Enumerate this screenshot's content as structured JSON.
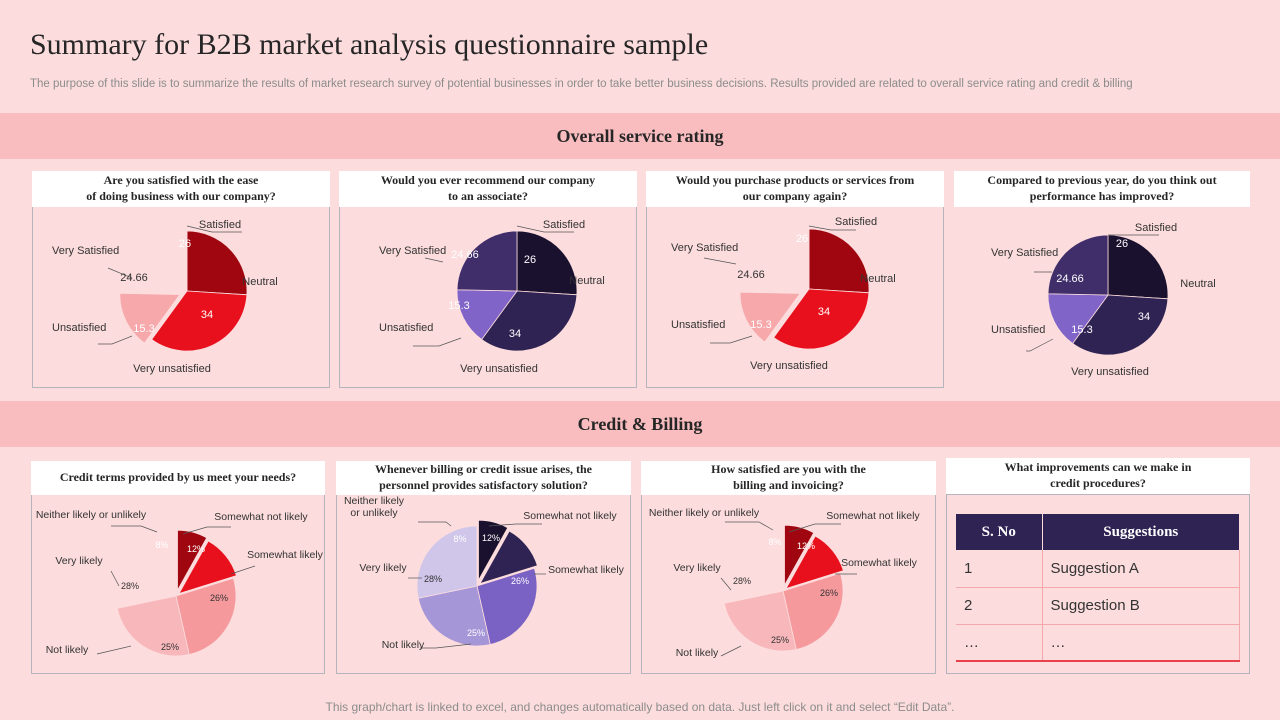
{
  "page": {
    "title": "Summary for B2B market analysis questionnaire sample",
    "subtitle": "The purpose of this slide is to summarize the results of market research survey of potential businesses in order to take better business decisions. Results provided are related to overall service rating and credit & billing",
    "section1": "Overall service rating",
    "section2": "Credit & Billing",
    "footer": "This graph/chart is linked to excel, and changes automatically based on data. Just left click on it and select “Edit Data”."
  },
  "chart_data": [
    {
      "type": "pie",
      "question": "Are you satisfied with the ease\nof doing business with our company?",
      "categories": [
        "Satisfied",
        "Neutral",
        "Very unsatisfied",
        "Unsatisfied",
        "Very Satisfied"
      ],
      "values": [
        26,
        34,
        0,
        15.3,
        24.66
      ],
      "value_labels": [
        "26",
        "34",
        "",
        "15.3",
        "24.66"
      ],
      "colors": [
        "#a0060f",
        "#e8101c",
        "#e8101c",
        "#f6a8ab",
        "#fcdcdd"
      ]
    },
    {
      "type": "pie",
      "question": "Would you ever recommend our company\nto an associate?",
      "categories": [
        "Satisfied",
        "Neutral",
        "Very unsatisfied",
        "Unsatisfied",
        "Very Satisfied"
      ],
      "values": [
        26,
        34,
        0,
        15.3,
        24.66
      ],
      "value_labels": [
        "26",
        "34",
        "",
        "15.3",
        "24.66"
      ],
      "colors": [
        "#19112e",
        "#2e2352",
        "#2e2352",
        "#8064c8",
        "#3f2e6a"
      ]
    },
    {
      "type": "pie",
      "question": "Would you purchase products or services from\nour company again?",
      "categories": [
        "Satisfied",
        "Neutral",
        "Very unsatisfied",
        "Unsatisfied",
        "Very Satisfied"
      ],
      "values": [
        26,
        34,
        0,
        15.3,
        24.66
      ],
      "value_labels": [
        "26",
        "34",
        "",
        "15.3",
        "24.66"
      ],
      "colors": [
        "#a0060f",
        "#e8101c",
        "#e8101c",
        "#f6a8ab",
        "#fcdcdd"
      ]
    },
    {
      "type": "pie",
      "question": "Compared to previous year, do you think out\nperformance has improved?",
      "categories": [
        "Satisfied",
        "Neutral",
        "Very unsatisfied",
        "Unsatisfied",
        "Very Satisfied"
      ],
      "values": [
        26,
        34,
        0,
        15.3,
        24.66
      ],
      "value_labels": [
        "26",
        "34",
        "",
        "15.3",
        "24.66"
      ],
      "colors": [
        "#19112e",
        "#2e2352",
        "#2e2352",
        "#8064c8",
        "#3f2e6a"
      ]
    },
    {
      "type": "pie",
      "question": "Credit terms provided by us meet your needs?",
      "categories": [
        "Neither likely or unlikely",
        "Somewhat not likely",
        "Somewhat likely",
        "Not likely",
        "Very likely"
      ],
      "values": [
        8,
        12,
        26,
        25,
        28
      ],
      "value_labels": [
        "8%",
        "12%",
        "26%",
        "25%",
        "28%"
      ],
      "colors": [
        "#a0060f",
        "#e8101c",
        "#f6999d",
        "#f8b8bb",
        "#fcdcdd"
      ]
    },
    {
      "type": "pie",
      "question": "Whenever billing or credit issue arises, the\npersonnel provides satisfactory solution?",
      "categories": [
        "Neither likely\nor unlikely",
        "Somewhat not likely",
        "Somewhat likely",
        "Not likely",
        "Very likely"
      ],
      "values": [
        8,
        12,
        26,
        25,
        28
      ],
      "value_labels": [
        "8%",
        "12%",
        "26%",
        "25%",
        "28%"
      ],
      "colors": [
        "#19112e",
        "#2e2352",
        "#7a62c4",
        "#a596d8",
        "#cfc6ea"
      ]
    },
    {
      "type": "pie",
      "question": "How satisfied are you with the\nbilling and invoicing?",
      "categories": [
        "Neither likely or unlikely",
        "Somewhat not likely",
        "Somewhat likely",
        "Not likely",
        "Very likely"
      ],
      "values": [
        8,
        12,
        26,
        25,
        28
      ],
      "value_labels": [
        "8%",
        "12%",
        "26%",
        "25%",
        "28%"
      ],
      "colors": [
        "#a0060f",
        "#e8101c",
        "#f6999d",
        "#f8b8bb",
        "#fcdcdd"
      ]
    }
  ],
  "suggestions": {
    "question": "What improvements can we make in\ncredit procedures?",
    "headers": [
      "S. No",
      "Suggestions"
    ],
    "rows": [
      [
        "1",
        "Suggestion A"
      ],
      [
        "2",
        "Suggestion B"
      ],
      [
        "…",
        "…"
      ]
    ]
  }
}
